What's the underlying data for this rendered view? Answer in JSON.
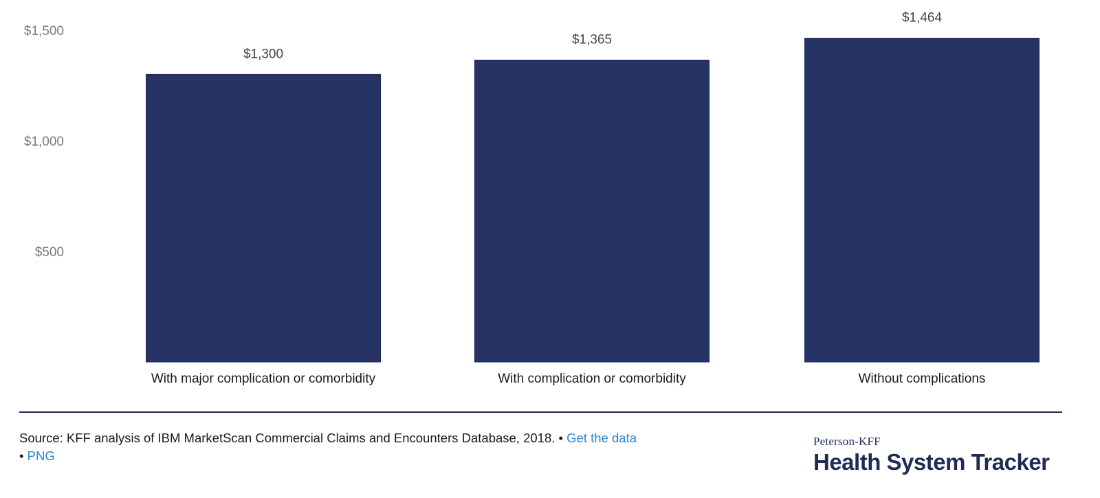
{
  "chart_data": {
    "type": "bar",
    "categories": [
      "With major complication or comorbidity",
      "With complication or comorbidity",
      "Without complications"
    ],
    "values": [
      1300,
      1365,
      1464
    ],
    "data_labels": [
      "$1,300",
      "$1,365",
      "$1,464"
    ],
    "yticks": [
      {
        "value": 500,
        "label": "$500"
      },
      {
        "value": 1000,
        "label": "$1,000"
      },
      {
        "value": 1500,
        "label": "$1,500"
      }
    ],
    "ylim": [
      0,
      1500
    ],
    "bar_color": "#253465",
    "grid": false,
    "legend": false
  },
  "footer": {
    "source_text": "Source: KFF analysis of IBM MarketScan Commercial Claims and Encounters Database, 2018. • ",
    "get_data_link": "Get the data",
    "separator": "• ",
    "png_link": "PNG"
  },
  "brand": {
    "top": "Peterson-KFF",
    "main": "Health System Tracker"
  },
  "colors": {
    "bar": "#253465",
    "link": "#2f86c8",
    "rule": "#1f2a55"
  }
}
